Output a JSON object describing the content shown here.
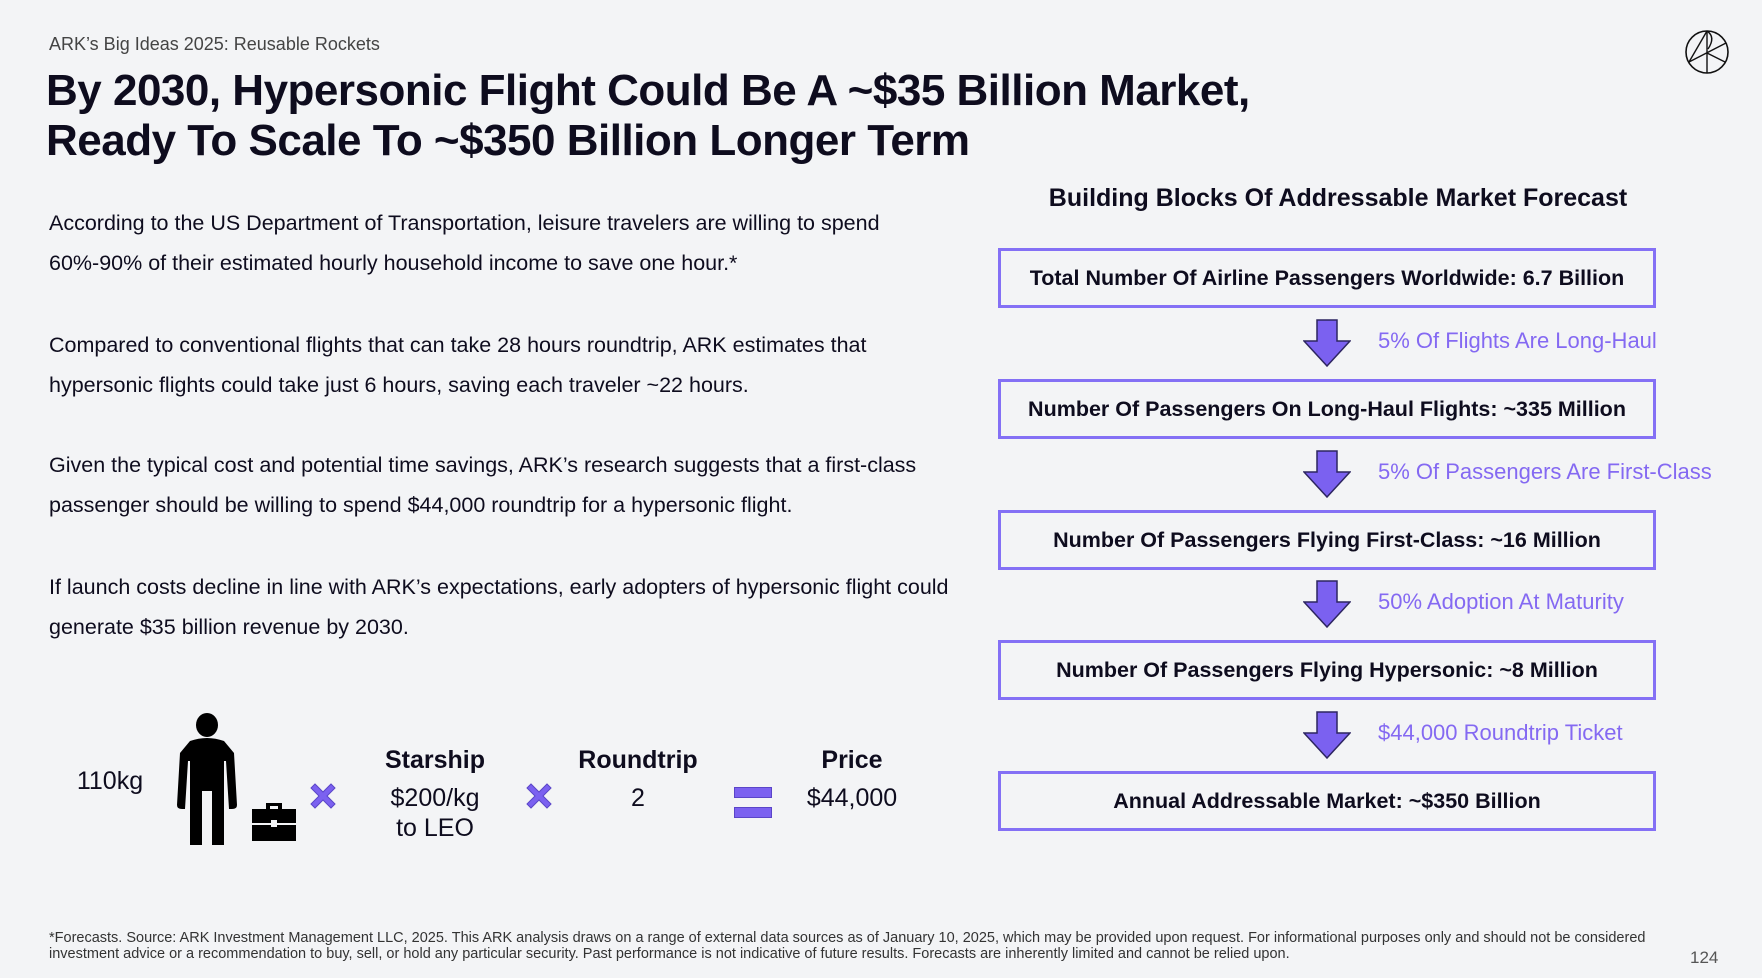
{
  "header": {
    "subtitle": "ARK’s Big Ideas 2025: Reusable Rockets",
    "title_line1": "By 2030, Hypersonic Flight Could Be A ~$35 Billion Market,",
    "title_line2": "Ready To Scale To ~$350 Billion Longer Term"
  },
  "paragraphs": [
    "According to the US Department of Transportation, leisure travelers are willing to spend 60%-90% of their estimated hourly household income to save one hour.*",
    "Compared to conventional flights that can take 28 hours roundtrip, ARK estimates that hypersonic flights could take just 6 hours, saving each traveler ~22 hours.",
    "Given the typical cost and potential time savings, ARK’s research suggests that a first-class passenger should be willing to spend $44,000 roundtrip for a hypersonic flight.",
    "If launch costs decline in line with ARK’s expectations, early adopters of hypersonic flight could generate $35 billion revenue by 2030."
  ],
  "formula": {
    "weight": "110kg",
    "starship_label": "Starship",
    "starship_value_line1": "$200/kg",
    "starship_value_line2": "to LEO",
    "roundtrip_label": "Roundtrip",
    "roundtrip_value": "2",
    "price_label": "Price",
    "price_value": "$44,000"
  },
  "forecast": {
    "heading": "Building Blocks Of Addressable Market Forecast",
    "boxes": [
      "Total Number Of Airline Passengers Worldwide: 6.7 Billion",
      "Number Of Passengers On Long-Haul Flights: ~335 Million",
      "Number Of Passengers Flying First-Class: ~16 Million",
      "Number Of Passengers Flying Hypersonic: ~8 Million",
      "Annual Addressable Market: ~$350 Billion"
    ],
    "steps": [
      "5% Of Flights Are Long-Haul",
      "5% Of Passengers Are First-Class",
      "50% Adoption At Maturity",
      "$44,000 Roundtrip Ticket"
    ]
  },
  "footer": {
    "note": "*Forecasts. Source: ARK Investment Management LLC, 2025. This ARK analysis draws on a range of external data sources as of January 10, 2025, which may be provided upon request. For informational purposes only and should not be considered investment advice or a recommendation to buy, sell, or hold any particular security. Past performance is not indicative of future results. Forecasts are inherently limited and cannot be relied upon.",
    "page_number": "124"
  },
  "colors": {
    "accent": "#8470f5",
    "arrow": "#7b61f0",
    "text": "#0e0c1e"
  }
}
